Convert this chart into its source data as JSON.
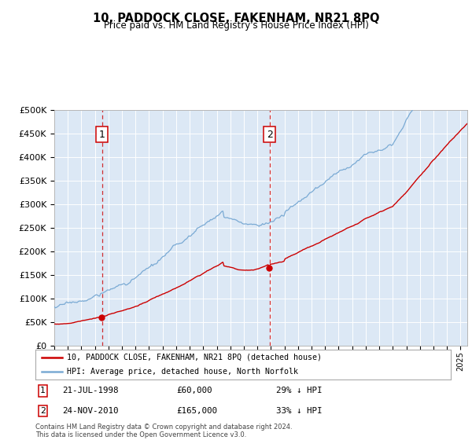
{
  "title": "10, PADDOCK CLOSE, FAKENHAM, NR21 8PQ",
  "subtitle": "Price paid vs. HM Land Registry's House Price Index (HPI)",
  "hpi_color": "#7aaad4",
  "price_color": "#cc0000",
  "marker_color": "#cc0000",
  "bg_color": "#dce8f5",
  "grid_color": "#ffffff",
  "ylim": [
    0,
    500000
  ],
  "yticks": [
    0,
    50000,
    100000,
    150000,
    200000,
    250000,
    300000,
    350000,
    400000,
    450000,
    500000
  ],
  "sale1_date": "21-JUL-1998",
  "sale1_price": 60000,
  "sale1_pct": "29% ↓ HPI",
  "sale1_year": 1998.54,
  "sale2_date": "24-NOV-2010",
  "sale2_price": 165000,
  "sale2_pct": "33% ↓ HPI",
  "sale2_year": 2010.9,
  "legend_line1": "10, PADDOCK CLOSE, FAKENHAM, NR21 8PQ (detached house)",
  "legend_line2": "HPI: Average price, detached house, North Norfolk",
  "footnote": "Contains HM Land Registry data © Crown copyright and database right 2024.\nThis data is licensed under the Open Government Licence v3.0.",
  "xmin": 1995.0,
  "xmax": 2025.5
}
